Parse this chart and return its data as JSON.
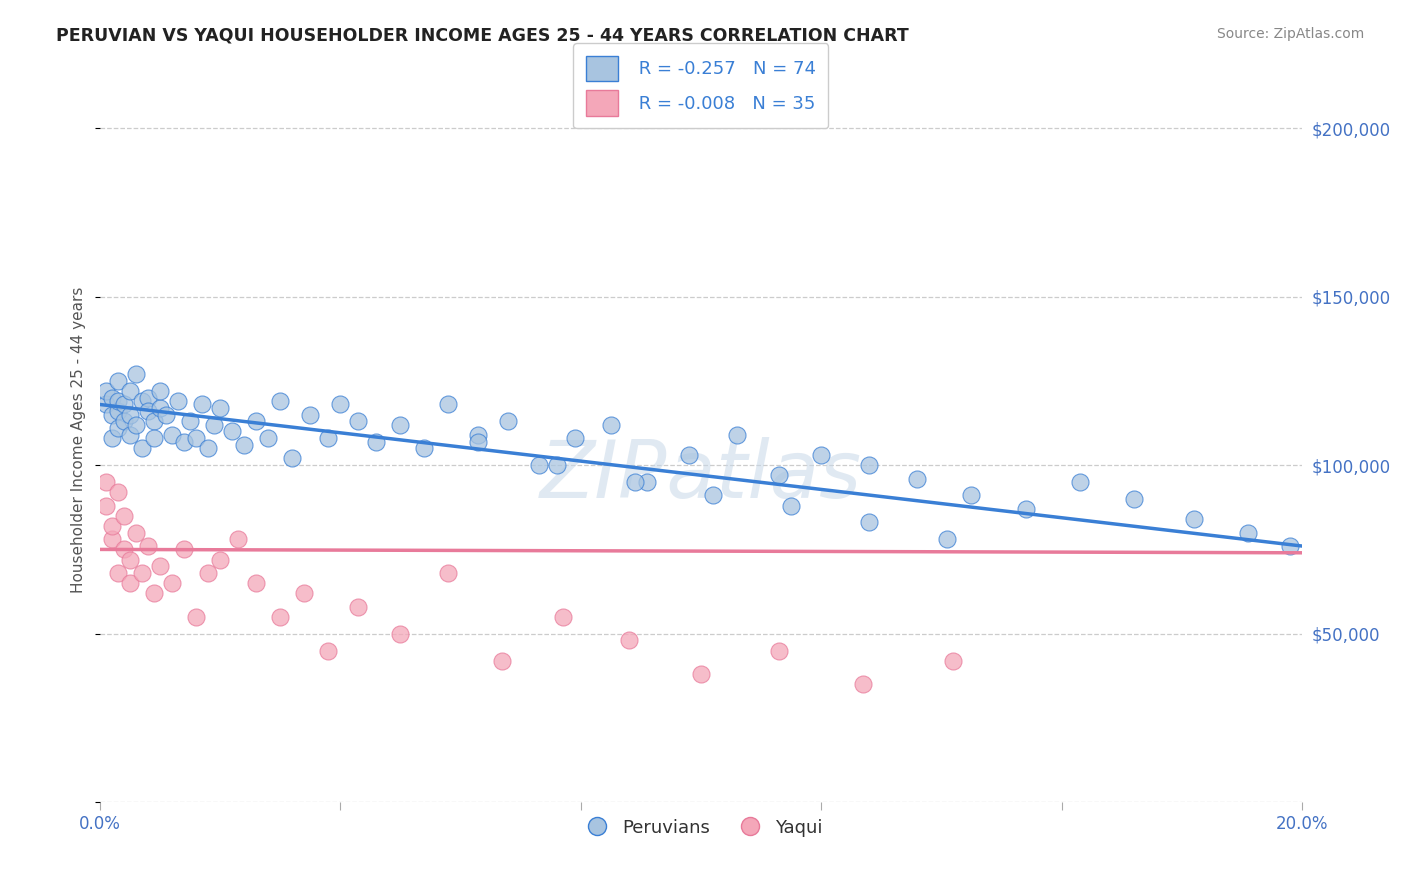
{
  "title": "PERUVIAN VS YAQUI HOUSEHOLDER INCOME AGES 25 - 44 YEARS CORRELATION CHART",
  "source": "Source: ZipAtlas.com",
  "ylabel": "Householder Income Ages 25 - 44 years",
  "xlim": [
    0.0,
    0.2
  ],
  "ylim": [
    0,
    215000
  ],
  "yticks": [
    0,
    50000,
    100000,
    150000,
    200000
  ],
  "ytick_labels": [
    "",
    "$50,000",
    "$100,000",
    "$150,000",
    "$200,000"
  ],
  "xticks": [
    0.0,
    0.04,
    0.08,
    0.12,
    0.16,
    0.2
  ],
  "xtick_labels": [
    "0.0%",
    "",
    "",
    "",
    "",
    "20.0%"
  ],
  "peruvian_color": "#a8c4e0",
  "yaqui_color": "#f4a7b9",
  "peruvian_line_color": "#3a7fd5",
  "yaqui_line_color": "#e87a9a",
  "legend_R_peruvian": "R = -0.257",
  "legend_N_peruvian": "N = 74",
  "legend_R_yaqui": "R = -0.008",
  "legend_N_yaqui": "N = 35",
  "watermark": "ZIPatlas",
  "peruvian_x": [
    0.001,
    0.001,
    0.002,
    0.002,
    0.002,
    0.003,
    0.003,
    0.003,
    0.003,
    0.004,
    0.004,
    0.005,
    0.005,
    0.005,
    0.006,
    0.006,
    0.007,
    0.007,
    0.008,
    0.008,
    0.009,
    0.009,
    0.01,
    0.01,
    0.011,
    0.012,
    0.013,
    0.014,
    0.015,
    0.016,
    0.017,
    0.018,
    0.019,
    0.02,
    0.022,
    0.024,
    0.026,
    0.028,
    0.03,
    0.032,
    0.035,
    0.038,
    0.04,
    0.043,
    0.046,
    0.05,
    0.054,
    0.058,
    0.063,
    0.068,
    0.073,
    0.079,
    0.085,
    0.091,
    0.098,
    0.106,
    0.113,
    0.12,
    0.128,
    0.136,
    0.145,
    0.154,
    0.163,
    0.172,
    0.182,
    0.191,
    0.198,
    0.063,
    0.076,
    0.089,
    0.102,
    0.115,
    0.128,
    0.141
  ],
  "peruvian_y": [
    118000,
    122000,
    115000,
    120000,
    108000,
    116000,
    119000,
    125000,
    111000,
    113000,
    118000,
    109000,
    122000,
    115000,
    127000,
    112000,
    119000,
    105000,
    120000,
    116000,
    113000,
    108000,
    117000,
    122000,
    115000,
    109000,
    119000,
    107000,
    113000,
    108000,
    118000,
    105000,
    112000,
    117000,
    110000,
    106000,
    113000,
    108000,
    119000,
    102000,
    115000,
    108000,
    118000,
    113000,
    107000,
    112000,
    105000,
    118000,
    109000,
    113000,
    100000,
    108000,
    112000,
    95000,
    103000,
    109000,
    97000,
    103000,
    100000,
    96000,
    91000,
    87000,
    95000,
    90000,
    84000,
    80000,
    76000,
    107000,
    100000,
    95000,
    91000,
    88000,
    83000,
    78000
  ],
  "yaqui_x": [
    0.001,
    0.001,
    0.002,
    0.002,
    0.003,
    0.003,
    0.004,
    0.004,
    0.005,
    0.005,
    0.006,
    0.007,
    0.008,
    0.009,
    0.01,
    0.012,
    0.014,
    0.016,
    0.018,
    0.02,
    0.023,
    0.026,
    0.03,
    0.034,
    0.038,
    0.043,
    0.05,
    0.058,
    0.067,
    0.077,
    0.088,
    0.1,
    0.113,
    0.127,
    0.142
  ],
  "yaqui_y": [
    95000,
    88000,
    78000,
    82000,
    92000,
    68000,
    75000,
    85000,
    65000,
    72000,
    80000,
    68000,
    76000,
    62000,
    70000,
    65000,
    75000,
    55000,
    68000,
    72000,
    78000,
    65000,
    55000,
    62000,
    45000,
    58000,
    50000,
    68000,
    42000,
    55000,
    48000,
    38000,
    45000,
    35000,
    42000
  ],
  "peruvian_trend_x0": 0.0,
  "peruvian_trend_y0": 118000,
  "peruvian_trend_x1": 0.2,
  "peruvian_trend_y1": 76000,
  "yaqui_trend_x0": 0.0,
  "yaqui_trend_y0": 75000,
  "yaqui_trend_x1": 0.2,
  "yaqui_trend_y1": 74000
}
